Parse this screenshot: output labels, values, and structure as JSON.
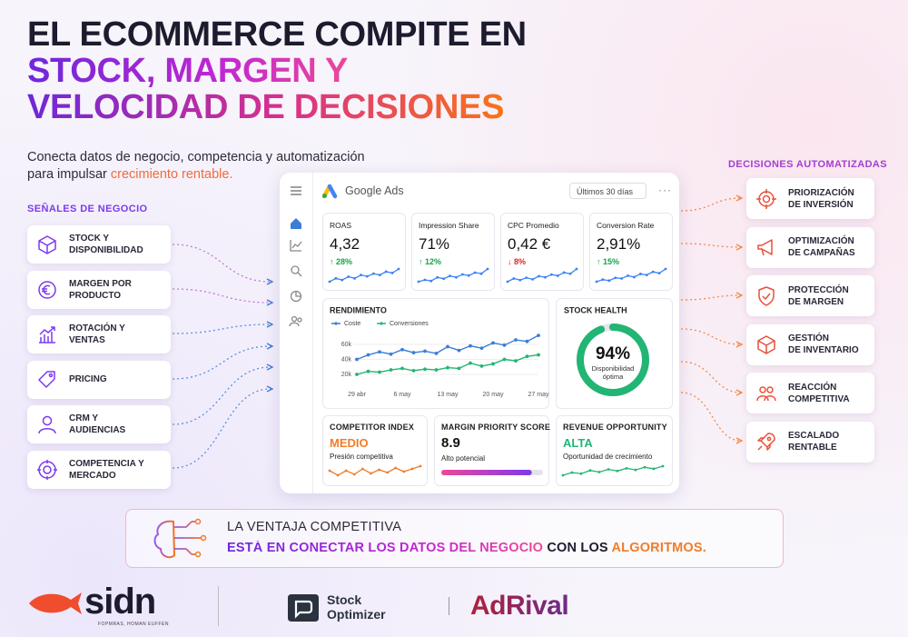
{
  "header": {
    "title": [
      "EL ECOMMERCE COMPITE EN",
      "STOCK, MARGEN Y",
      "VELOCIDAD DE DECISIONES"
    ],
    "subtitle": [
      "Conecta datos de negocio, competencia y automatización",
      "para impulsar "
    ],
    "subtitle_highlight": "crecimiento rentable."
  },
  "signals": {
    "title": "SEÑALES DE NEGOCIO",
    "items": [
      [
        "STOCK Y",
        "DISPONIBILIDAD"
      ],
      [
        "MARGEN POR",
        "PRODUCTO"
      ],
      [
        "ROTACIÓN Y",
        "VENTAS"
      ],
      [
        "PRICING"
      ],
      [
        "CRM Y",
        "AUDIENCIAS"
      ],
      [
        "COMPETENCIA Y",
        "MERCADO"
      ]
    ]
  },
  "decisions": {
    "title": "DECISIONES AUTOMATIZADAS",
    "items": [
      [
        "PRIORIZACIÓN",
        "DE INVERSIÓN"
      ],
      [
        "OPTIMIZACIÓN",
        "DE CAMPAÑAS"
      ],
      [
        "PROTECCIÓN",
        "DE MARGEN"
      ],
      [
        "GESTIÓN",
        "DE INVENTARIO"
      ],
      [
        "REACCIÓN",
        "COMPETITIVA"
      ],
      [
        "ESCALADO",
        "RENTABLE"
      ]
    ]
  },
  "dashboard": {
    "brand": "Google Ads",
    "date_range": "Últimos 30 días",
    "spark_color": "#3b82f6",
    "kpis": [
      {
        "label": "ROAS",
        "value": "4,32",
        "change": "↑ 28%",
        "color": "#16a34a",
        "trend": [
          3,
          4,
          3.5,
          4.5,
          4,
          5,
          4.6,
          5.4,
          5,
          6,
          5.6,
          6.8
        ]
      },
      {
        "label": "Impression Share",
        "value": "71%",
        "change": "↑ 12%",
        "color": "#16a34a",
        "trend": [
          3,
          3.5,
          3.2,
          4.2,
          3.8,
          4.6,
          4.2,
          5,
          4.7,
          5.5,
          5.2,
          6.5
        ]
      },
      {
        "label": "CPC Promedio",
        "value": "0,42 €",
        "change": "↓ 8%",
        "color": "#dc2626",
        "trend": [
          3,
          3.8,
          3.4,
          4,
          3.6,
          4.4,
          4.1,
          4.8,
          4.5,
          5.3,
          5,
          6.2
        ]
      },
      {
        "label": "Conversion Rate",
        "value": "2,91%",
        "change": "↑ 15%",
        "color": "#16a34a",
        "trend": [
          3,
          3.6,
          3.3,
          4.1,
          3.9,
          4.7,
          4.3,
          5.2,
          4.9,
          5.8,
          5.4,
          6.6
        ]
      }
    ],
    "performance": {
      "type": "line",
      "title": "RENDIMIENTO",
      "categories": [
        "29 abr",
        null,
        null,
        null,
        "6 may",
        null,
        null,
        null,
        "13 may",
        null,
        null,
        null,
        "20 may",
        null,
        null,
        null,
        "27 may"
      ],
      "series": [
        {
          "name": "Coste",
          "color": "#3b7dd8",
          "values": [
            40000,
            46000,
            50000,
            47000,
            53000,
            49000,
            51000,
            48000,
            57000,
            52000,
            58000,
            55000,
            62000,
            59000,
            66000,
            64000,
            72000
          ]
        },
        {
          "name": "Conversiones",
          "color": "#22b573",
          "values": [
            20000,
            24000,
            23000,
            26000,
            28000,
            25000,
            27000,
            26000,
            29000,
            28000,
            35000,
            31000,
            34000,
            40000,
            38000,
            44000,
            46000
          ]
        }
      ],
      "ylim": [
        0,
        80000
      ],
      "yticks": [
        {
          "value": 20000,
          "label": "20k"
        },
        {
          "value": 40000,
          "label": "40k"
        },
        {
          "value": 60000,
          "label": "60k"
        }
      ],
      "grid": true
    },
    "stock_health": {
      "title": "STOCK HEALTH",
      "value": 94,
      "value_label": "94%",
      "caption": [
        "Disponibilidad",
        "óptima"
      ],
      "color": "#22b573"
    },
    "competitor_index": {
      "title": "COMPETITOR INDEX",
      "status": "MEDIO",
      "caption": "Presión competitiva",
      "color": "#f07c2a",
      "trend": [
        3,
        2,
        3,
        2.2,
        3.4,
        2.4,
        3.2,
        2.6,
        3.6,
        2.8,
        3.4,
        4
      ]
    },
    "margin_priority": {
      "title": "MARGIN PRIORITY SCORE",
      "value": 8.9,
      "caption": "Alto potencial",
      "xlim": [
        0,
        10
      ]
    },
    "revenue_opportunity": {
      "title": "REVENUE OPPORTUNITY",
      "status": "ALTA",
      "caption": "Oportunidad de crecimiento",
      "color": "#22b573",
      "trend": [
        2.5,
        3,
        2.8,
        3.4,
        3.1,
        3.6,
        3.3,
        3.8,
        3.5,
        4,
        3.7,
        4.2
      ]
    }
  },
  "banner": {
    "line1": "LA VENTAJA COMPETITIVA",
    "line2": [
      "ESTÁ EN CONECTAR LOS DATOS DEL NEGOCIO",
      " CON LOS ",
      "ALGORITMOS."
    ]
  },
  "footer": {
    "sidn": "sidn",
    "sidn_tagline": "FOPMRAS, HOMAN EUFFEN",
    "stock_optimizer": [
      "Stock",
      "Optimizer"
    ],
    "adrival": "AdRival"
  }
}
